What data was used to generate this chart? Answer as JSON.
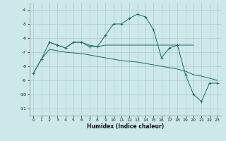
{
  "xlabel": "Humidex (Indice chaleur)",
  "ylabel": "",
  "bg_color": "#cce8e8",
  "grid_color": "#aacccc",
  "line_color": "#1a6b6b",
  "xlim": [
    -0.5,
    23.5
  ],
  "ylim": [
    -11.5,
    -3.5
  ],
  "xticks": [
    0,
    1,
    2,
    3,
    4,
    5,
    6,
    7,
    8,
    9,
    10,
    11,
    12,
    13,
    14,
    15,
    16,
    17,
    18,
    19,
    20,
    21,
    22,
    23
  ],
  "yticks": [
    -11,
    -10,
    -9,
    -8,
    -7,
    -6,
    -5,
    -4
  ],
  "line1_x": [
    0,
    1,
    2,
    3,
    4,
    5,
    6,
    7,
    8,
    9,
    10,
    11,
    12,
    13,
    14,
    15,
    16,
    17,
    18,
    19,
    20,
    21,
    22,
    23
  ],
  "line1_y": [
    -8.5,
    -7.5,
    -6.3,
    -6.5,
    -6.7,
    -6.3,
    -6.3,
    -6.6,
    -6.6,
    -5.8,
    -5.0,
    -5.0,
    -4.6,
    -4.3,
    -4.5,
    -5.4,
    -7.4,
    -6.7,
    -6.5,
    -8.6,
    -10.0,
    -10.5,
    -9.2,
    -9.2
  ],
  "line2_x": [
    2,
    3,
    4,
    5,
    6,
    7,
    8,
    9,
    10,
    11,
    12,
    13,
    14,
    15,
    16,
    17,
    18,
    19,
    20
  ],
  "line2_y": [
    -6.3,
    -6.5,
    -6.7,
    -6.3,
    -6.3,
    -6.5,
    -6.6,
    -6.5,
    -6.5,
    -6.5,
    -6.5,
    -6.5,
    -6.5,
    -6.5,
    -6.5,
    -6.5,
    -6.5,
    -6.5,
    -6.5
  ],
  "line3_x": [
    0,
    1,
    2,
    3,
    4,
    5,
    6,
    7,
    8,
    9,
    10,
    11,
    12,
    13,
    14,
    15,
    16,
    17,
    18,
    19,
    20,
    21,
    22,
    23
  ],
  "line3_y": [
    -8.5,
    -7.5,
    -6.8,
    -6.9,
    -7.0,
    -7.05,
    -7.1,
    -7.2,
    -7.3,
    -7.4,
    -7.5,
    -7.6,
    -7.65,
    -7.7,
    -7.8,
    -7.9,
    -8.0,
    -8.1,
    -8.2,
    -8.35,
    -8.6,
    -8.7,
    -8.85,
    -9.0
  ]
}
